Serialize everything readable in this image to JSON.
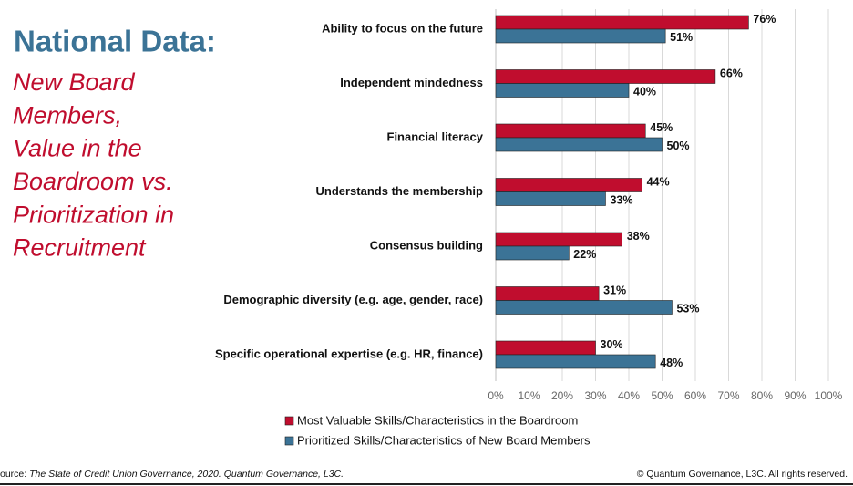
{
  "chart_data": {
    "type": "barh",
    "title": "National Data:",
    "subtitle": [
      "New Board",
      "Members,",
      "Value in the",
      "Boardroom vs.",
      "Prioritization in",
      "Recruitment"
    ],
    "categories": [
      "Ability to focus on the future",
      "Independent mindedness",
      "Financial literacy",
      "Understands the membership",
      "Consensus building",
      "Demographic diversity (e.g. age, gender, race)",
      "Specific operational expertise (e.g. HR, finance)"
    ],
    "series": [
      {
        "name": "Most Valuable Skills/Characteristics in the Boardroom",
        "color": "#c00d2e",
        "values": [
          76,
          66,
          45,
          44,
          38,
          31,
          30
        ],
        "value_labels": [
          "76%",
          "66%",
          "45%",
          "44%",
          "38%",
          "31%",
          "30%"
        ]
      },
      {
        "name": "Prioritized Skills/Characteristics of New Board Members",
        "color": "#3b7396",
        "values": [
          51,
          40,
          50,
          33,
          22,
          53,
          48
        ],
        "value_labels": [
          "51%",
          "40%",
          "50%",
          "33%",
          "22%",
          "53%",
          "48%"
        ]
      }
    ],
    "xlim": [
      0,
      100
    ],
    "xticks": [
      {
        "value": 0,
        "label": "0%"
      },
      {
        "value": 10,
        "label": "10%"
      },
      {
        "value": 20,
        "label": "20%"
      },
      {
        "value": 30,
        "label": "30%"
      },
      {
        "value": 40,
        "label": "40%"
      },
      {
        "value": 50,
        "label": "50%"
      },
      {
        "value": 60,
        "label": "60%"
      },
      {
        "value": 70,
        "label": "70%"
      },
      {
        "value": 80,
        "label": "80%"
      },
      {
        "value": 90,
        "label": "90%"
      },
      {
        "value": 100,
        "label": "100%"
      }
    ],
    "grid": true,
    "source_label": "ource:",
    "source_text": "The State of Credit Union Governance, 2020. Quantum Governance, L3C.",
    "copyright": "© Quantum Governance, L3C. All rights reserved."
  }
}
